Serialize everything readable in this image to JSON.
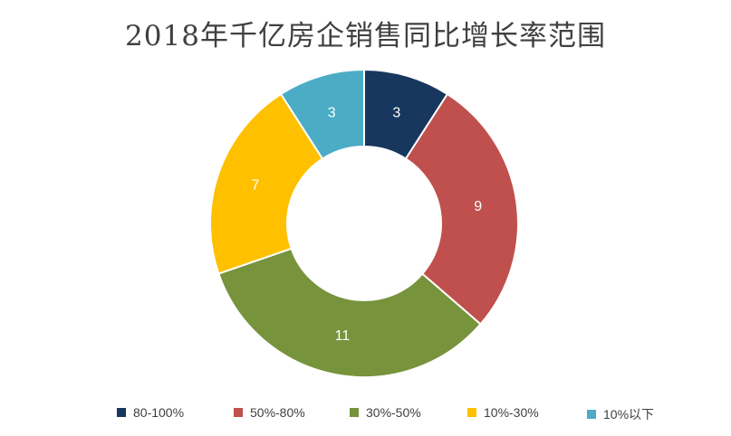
{
  "chart_data": {
    "type": "pie",
    "title": "2018年千亿房企销售同比增长率范围",
    "donut": true,
    "categories": [
      "80-100%",
      "50%-80%",
      "30%-50%",
      "10%-30%",
      "10%以下"
    ],
    "values": [
      3,
      9,
      11,
      7,
      3
    ],
    "data_labels": [
      "3",
      "9",
      "11",
      "7",
      "3"
    ],
    "colors": [
      "#17375e",
      "#c0504d",
      "#77933c",
      "#ffc000",
      "#4bacc6"
    ],
    "legend_position": "bottom",
    "start_angle": "top",
    "direction": "clockwise"
  }
}
